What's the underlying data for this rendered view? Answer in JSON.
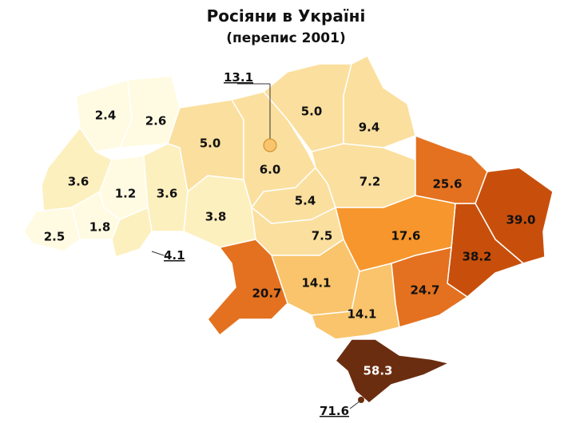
{
  "title": "Росіяни в Україні",
  "subtitle": "(перепис 2001)",
  "colors": {
    "lt3": "#fffbe3",
    "3to5": "#fdf0bf",
    "5to10": "#fbdf9e",
    "10to15": "#f9c46b",
    "15to20": "#f6962c",
    "20to30": "#e4711f",
    "30to50": "#c84f0b",
    "gt50": "#6b2d10",
    "border": "#ffffff"
  },
  "regions": [
    {
      "id": "volyn",
      "value": "2.4",
      "class": "lt3"
    },
    {
      "id": "rivne",
      "value": "2.6",
      "class": "lt3"
    },
    {
      "id": "lviv",
      "value": "3.6",
      "class": "3to5"
    },
    {
      "id": "ternopil",
      "value": "1.2",
      "class": "lt3"
    },
    {
      "id": "khmelnytskyi",
      "value": "3.6",
      "class": "3to5"
    },
    {
      "id": "zhytomyr",
      "value": "5.0",
      "class": "5to10"
    },
    {
      "id": "zakarpattia",
      "value": "2.5",
      "class": "lt3"
    },
    {
      "id": "ivano-frankivsk",
      "value": "1.8",
      "class": "lt3"
    },
    {
      "id": "chernivtsi",
      "value": "4.1",
      "class": "3to5"
    },
    {
      "id": "vinnytsia",
      "value": "3.8",
      "class": "3to5"
    },
    {
      "id": "kyiv-oblast",
      "value": "6.0",
      "class": "5to10"
    },
    {
      "id": "chernihiv",
      "value": "5.0",
      "class": "5to10"
    },
    {
      "id": "sumy",
      "value": "9.4",
      "class": "5to10"
    },
    {
      "id": "cherkasy",
      "value": "5.4",
      "class": "5to10"
    },
    {
      "id": "poltava",
      "value": "7.2",
      "class": "5to10"
    },
    {
      "id": "kharkiv",
      "value": "25.6",
      "class": "20to30"
    },
    {
      "id": "luhansk",
      "value": "39.0",
      "class": "30to50"
    },
    {
      "id": "donetsk",
      "value": "38.2",
      "class": "30to50"
    },
    {
      "id": "dnipropetrovsk",
      "value": "17.6",
      "class": "15to20"
    },
    {
      "id": "kirovohrad",
      "value": "7.5",
      "class": "5to10"
    },
    {
      "id": "odesa",
      "value": "20.7",
      "class": "20to30"
    },
    {
      "id": "mykolaiv",
      "value": "14.1",
      "class": "10to15"
    },
    {
      "id": "kherson",
      "value": "14.1",
      "class": "10to15"
    },
    {
      "id": "zaporizhzhia",
      "value": "24.7",
      "class": "20to30"
    },
    {
      "id": "crimea",
      "value": "58.3",
      "class": "gt50"
    },
    {
      "id": "kyiv-city",
      "value": "13.1",
      "class": "10to15"
    },
    {
      "id": "sevastopol",
      "value": "71.6",
      "class": "gt50"
    }
  ]
}
